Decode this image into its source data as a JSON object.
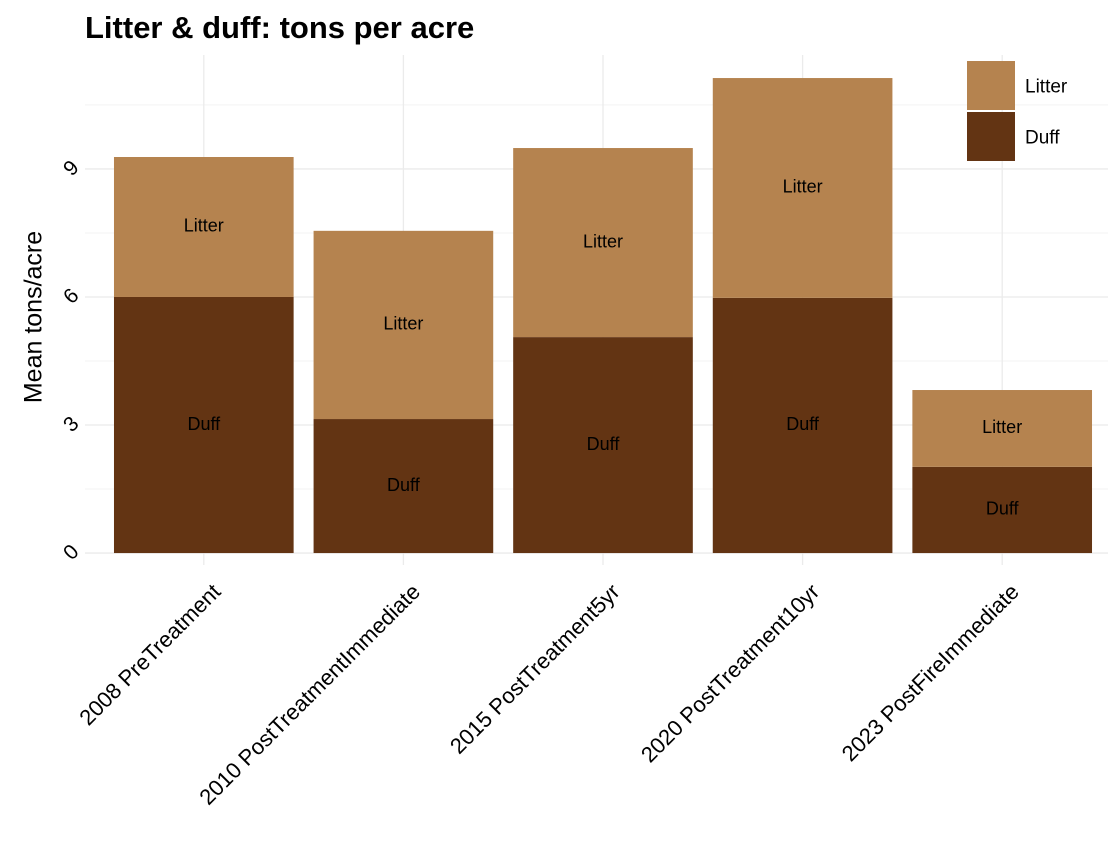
{
  "chart_data": {
    "type": "stacked_bar",
    "title": "Litter & duff: tons per acre",
    "y_label": "Mean tons/acre",
    "categories": [
      "2008 PreTreatment",
      "2010 PostTreatmentImmediate",
      "2015 PostTreatment5yr",
      "2020 PostTreatment10yr",
      "2023 PostFireImmediate"
    ],
    "series": [
      {
        "name": "Duff",
        "color": "#633413",
        "values": [
          6.0,
          3.14,
          5.06,
          5.98,
          2.02
        ]
      },
      {
        "name": "Litter",
        "color": "#b5834f",
        "values": [
          3.28,
          4.41,
          4.43,
          5.15,
          1.8
        ]
      }
    ],
    "ylim": [
      -0.28,
      11.67
    ],
    "yticks": [
      0,
      3,
      6,
      9
    ],
    "minor_yticks": [
      1.5,
      4.5,
      7.5,
      10.5
    ],
    "grid": true,
    "legend": "top-right"
  }
}
